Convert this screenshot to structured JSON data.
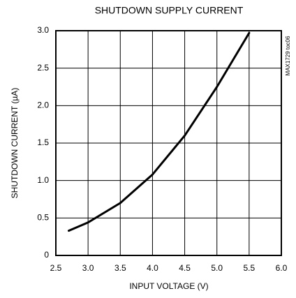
{
  "chart_data": {
    "type": "line",
    "title": "SHUTDOWN SUPPLY CURRENT",
    "xlabel": "INPUT VOLTAGE (V)",
    "ylabel": "SHUTDOWN CURRENT (µA)",
    "annotation": "MAX1729 toc06",
    "x": [
      2.7,
      3.0,
      3.5,
      4.0,
      4.5,
      5.0,
      5.5
    ],
    "values": [
      0.33,
      0.44,
      0.7,
      1.08,
      1.6,
      2.25,
      2.97
    ],
    "color": "#000000",
    "xlim": [
      2.5,
      6.0
    ],
    "ylim": [
      0,
      3.0
    ],
    "xticks": [
      2.5,
      {
        "value": 3.0,
        "label": "3.0"
      },
      3.5,
      {
        "value": 4.0,
        "label": "4.0"
      },
      4.5,
      {
        "value": 5.0,
        "label": "5.0"
      },
      5.5,
      {
        "value": 6.0,
        "label": "6.0"
      }
    ],
    "yticks": [
      0,
      0.5,
      {
        "value": 1.0,
        "label": "1.0"
      },
      1.5,
      {
        "value": 2.0,
        "label": "2.0"
      },
      2.5,
      {
        "value": 3.0,
        "label": "3.0"
      }
    ],
    "grid": true
  }
}
